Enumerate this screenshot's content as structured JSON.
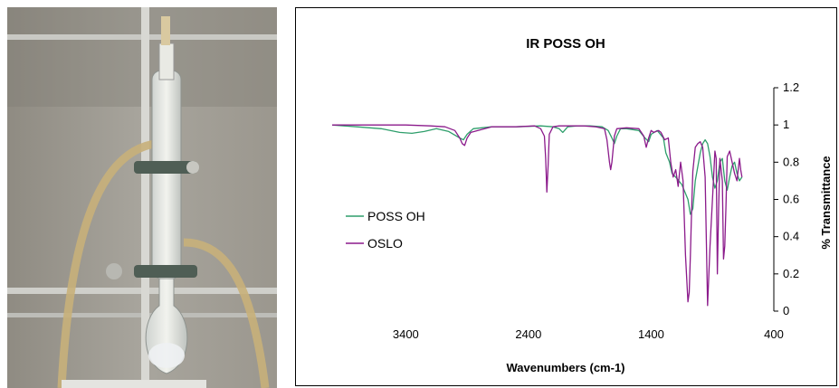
{
  "photo": {
    "description_icon": "lab-apparatus-photo"
  },
  "chart_data": {
    "type": "line",
    "title": "IR POSS OH",
    "xlabel": "Wavenumbers (cm-1)",
    "ylabel": "% Transmittance",
    "xlim": [
      4000,
      400
    ],
    "ylim": [
      0,
      1.2
    ],
    "x_ticks": [
      "3400",
      "2400",
      "1400",
      "400"
    ],
    "y_ticks": [
      "0",
      "0.2",
      "0.4",
      "0.6",
      "0.8",
      "1",
      "1.2"
    ],
    "x_tick_values": [
      3400,
      2400,
      1400,
      400
    ],
    "y_tick_values": [
      0,
      0.2,
      0.4,
      0.6,
      0.8,
      1,
      1.2
    ],
    "grid": false,
    "legend_position": "left",
    "series": [
      {
        "name": "POSS OH",
        "color": "#2e9e6b",
        "x": [
          4000,
          3800,
          3600,
          3450,
          3350,
          3250,
          3150,
          3050,
          2960,
          2930,
          2900,
          2850,
          2700,
          2500,
          2300,
          2200,
          2150,
          2120,
          2080,
          2000,
          1900,
          1800,
          1750,
          1720,
          1700,
          1680,
          1650,
          1600,
          1500,
          1450,
          1420,
          1400,
          1350,
          1300,
          1280,
          1250,
          1230,
          1200,
          1150,
          1100,
          1080,
          1060,
          1040,
          1000,
          980,
          960,
          940,
          920,
          900,
          880,
          860,
          840,
          820,
          800,
          780,
          760,
          740,
          720,
          700,
          680,
          660
        ],
        "y": [
          1.0,
          0.99,
          0.98,
          0.96,
          0.955,
          0.965,
          0.98,
          0.965,
          0.93,
          0.92,
          0.95,
          0.98,
          0.99,
          0.99,
          0.995,
          0.99,
          0.98,
          0.96,
          0.99,
          0.995,
          0.995,
          0.99,
          0.97,
          0.93,
          0.9,
          0.94,
          0.98,
          0.98,
          0.97,
          0.93,
          0.91,
          0.95,
          0.97,
          0.93,
          0.85,
          0.8,
          0.74,
          0.72,
          0.68,
          0.6,
          0.52,
          0.55,
          0.7,
          0.85,
          0.9,
          0.92,
          0.9,
          0.83,
          0.72,
          0.66,
          0.7,
          0.8,
          0.82,
          0.7,
          0.65,
          0.72,
          0.78,
          0.8,
          0.74,
          0.7,
          0.72
        ]
      },
      {
        "name": "OSLO",
        "color": "#8b1a8b",
        "x": [
          4000,
          3800,
          3600,
          3400,
          3200,
          3080,
          3000,
          2960,
          2940,
          2920,
          2900,
          2870,
          2700,
          2500,
          2350,
          2300,
          2270,
          2260,
          2250,
          2240,
          2230,
          2200,
          2150,
          2050,
          1950,
          1850,
          1780,
          1760,
          1740,
          1730,
          1720,
          1700,
          1680,
          1600,
          1500,
          1460,
          1440,
          1420,
          1400,
          1380,
          1340,
          1320,
          1290,
          1260,
          1240,
          1220,
          1200,
          1180,
          1160,
          1140,
          1120,
          1100,
          1090,
          1080,
          1070,
          1060,
          1040,
          1020,
          1000,
          980,
          960,
          940,
          920,
          900,
          880,
          870,
          860,
          850,
          840,
          820,
          810,
          800,
          790,
          780,
          760,
          740,
          720,
          700,
          680,
          670,
          660
        ],
        "y": [
          1.0,
          1.0,
          1.0,
          1.0,
          0.995,
          0.99,
          0.97,
          0.93,
          0.9,
          0.89,
          0.93,
          0.96,
          0.99,
          0.99,
          0.995,
          0.98,
          0.94,
          0.82,
          0.64,
          0.78,
          0.95,
          0.99,
          0.995,
          0.995,
          0.995,
          0.99,
          0.98,
          0.92,
          0.8,
          0.76,
          0.8,
          0.94,
          0.98,
          0.985,
          0.98,
          0.94,
          0.88,
          0.93,
          0.97,
          0.96,
          0.97,
          0.96,
          0.92,
          0.93,
          0.8,
          0.72,
          0.76,
          0.67,
          0.8,
          0.7,
          0.3,
          0.05,
          0.1,
          0.3,
          0.55,
          0.75,
          0.88,
          0.9,
          0.91,
          0.88,
          0.72,
          0.03,
          0.35,
          0.6,
          0.86,
          0.82,
          0.2,
          0.55,
          0.82,
          0.7,
          0.28,
          0.35,
          0.56,
          0.83,
          0.86,
          0.8,
          0.74,
          0.7,
          0.82,
          0.76,
          0.72
        ]
      }
    ]
  }
}
